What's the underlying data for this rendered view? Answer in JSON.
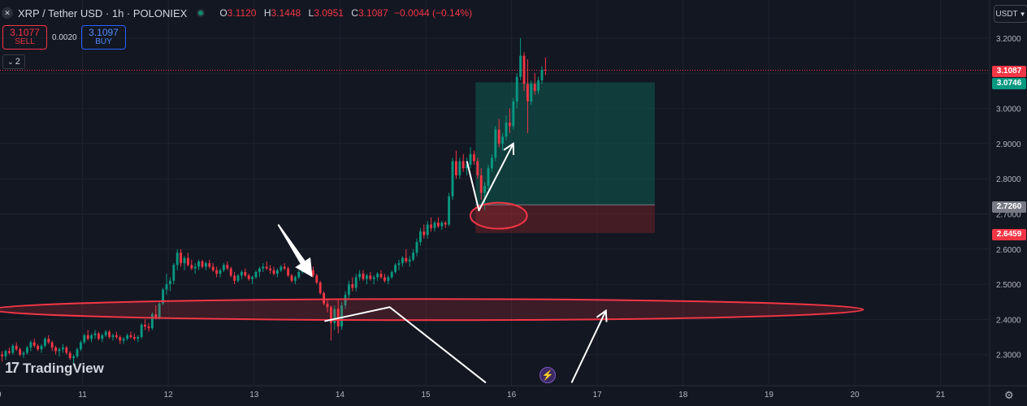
{
  "header": {
    "symbol_title": "XRP / Tether USD · 1h · POLONIEX",
    "open_key": "O",
    "open": "3.1120",
    "high_key": "H",
    "high": "3.1448",
    "low_key": "L",
    "low": "3.0951",
    "close_key": "C",
    "close": "3.1087",
    "change": "−0.0044 (−0.14%)"
  },
  "trade_panel": {
    "sell_price": "3.1077",
    "sell_label": "SELL",
    "spread": "0.0020",
    "buy_price": "3.1097",
    "buy_label": "BUY"
  },
  "indicators_toggle": {
    "count": "2"
  },
  "currency_selector": {
    "label": "USDT"
  },
  "branding": {
    "name": "TradingView"
  },
  "price_labels": {
    "last": "3.1087",
    "target": "3.0746",
    "entry": "2.7260",
    "stop": "2.6459"
  },
  "colors": {
    "background": "#131722",
    "up": "#089981",
    "down": "#f23645",
    "target_zone": "#0f5b50",
    "stop_zone": "#5a1f25"
  },
  "icons": [
    "xrp-logo-icon",
    "market-status-icon",
    "chevron-down-icon",
    "lightning-icon",
    "gear-icon",
    "tradingview-logo-icon"
  ],
  "chart_data": {
    "type": "candlestick",
    "title": "XRP / Tether USD · 1h · POLONIEX",
    "x_ticks": [
      "10",
      "11",
      "12",
      "13",
      "14",
      "15",
      "16",
      "17",
      "18",
      "19",
      "20",
      "21"
    ],
    "y_ticks": [
      "2.3000",
      "2.4000",
      "2.5000",
      "2.6000",
      "2.7000",
      "2.8000",
      "2.9000",
      "3.0000",
      "3.1000",
      "3.2000"
    ],
    "ylim": [
      2.23,
      3.24
    ],
    "xlim": [
      10.0,
      21.9
    ],
    "grid": true,
    "last_price": 3.1087,
    "position_tool": {
      "x_start": 15.58,
      "x_end": 17.67,
      "entry": 2.726,
      "target": 3.0746,
      "stop": 2.6459
    },
    "key_levels": [
      {
        "kind": "ellipse",
        "x_center": 15.85,
        "y_center": 2.695,
        "x_radius": 0.33,
        "y_radius": 0.037
      },
      {
        "kind": "ellipse",
        "x_center": 15.02,
        "y_center": 2.428,
        "x_radius": 5.08,
        "y_radius": 0.03
      }
    ],
    "annotations": [
      {
        "kind": "arrow",
        "points": [
          [
            13.28,
            2.67
          ],
          [
            13.68,
            2.52
          ]
        ],
        "style": "filled"
      },
      {
        "kind": "path",
        "points": [
          [
            13.82,
            2.395
          ],
          [
            14.58,
            2.435
          ],
          [
            15.7,
            2.22
          ]
        ]
      },
      {
        "kind": "arrow",
        "points": [
          [
            16.7,
            2.22
          ],
          [
            17.1,
            2.425
          ]
        ]
      },
      {
        "kind": "path",
        "points": [
          [
            15.48,
            2.85
          ],
          [
            15.62,
            2.71
          ],
          [
            16.02,
            2.9
          ]
        ]
      }
    ],
    "candles_hourly": [
      [
        2.325,
        2.335,
        2.29,
        2.3
      ],
      [
        2.3,
        2.31,
        2.28,
        2.295
      ],
      [
        2.295,
        2.315,
        2.285,
        2.31
      ],
      [
        2.31,
        2.32,
        2.3,
        2.305
      ],
      [
        2.305,
        2.33,
        2.3,
        2.325
      ],
      [
        2.325,
        2.335,
        2.31,
        2.315
      ],
      [
        2.315,
        2.32,
        2.295,
        2.3
      ],
      [
        2.3,
        2.31,
        2.29,
        2.305
      ],
      [
        2.305,
        2.325,
        2.3,
        2.32
      ],
      [
        2.32,
        2.34,
        2.31,
        2.335
      ],
      [
        2.335,
        2.345,
        2.32,
        2.325
      ],
      [
        2.325,
        2.33,
        2.31,
        2.315
      ],
      [
        2.315,
        2.33,
        2.305,
        2.325
      ],
      [
        2.325,
        2.35,
        2.32,
        2.345
      ],
      [
        2.345,
        2.355,
        2.33,
        2.335
      ],
      [
        2.335,
        2.34,
        2.31,
        2.32
      ],
      [
        2.32,
        2.325,
        2.3,
        2.31
      ],
      [
        2.31,
        2.32,
        2.295,
        2.315
      ],
      [
        2.315,
        2.33,
        2.305,
        2.32
      ],
      [
        2.32,
        2.325,
        2.3,
        2.305
      ],
      [
        2.305,
        2.31,
        2.285,
        2.29
      ],
      [
        2.29,
        2.3,
        2.27,
        2.295
      ],
      [
        2.295,
        2.32,
        2.29,
        2.315
      ],
      [
        2.315,
        2.34,
        2.31,
        2.335
      ],
      [
        2.335,
        2.36,
        2.33,
        2.355
      ],
      [
        2.355,
        2.37,
        2.34,
        2.345
      ],
      [
        2.345,
        2.36,
        2.335,
        2.355
      ],
      [
        2.355,
        2.37,
        2.345,
        2.36
      ],
      [
        2.36,
        2.365,
        2.34,
        2.345
      ],
      [
        2.345,
        2.36,
        2.335,
        2.355
      ],
      [
        2.355,
        2.37,
        2.35,
        2.365
      ],
      [
        2.365,
        2.37,
        2.345,
        2.35
      ],
      [
        2.35,
        2.36,
        2.34,
        2.355
      ],
      [
        2.355,
        2.365,
        2.345,
        2.35
      ],
      [
        2.35,
        2.355,
        2.33,
        2.34
      ],
      [
        2.34,
        2.35,
        2.33,
        2.345
      ],
      [
        2.345,
        2.36,
        2.34,
        2.355
      ],
      [
        2.355,
        2.365,
        2.345,
        2.35
      ],
      [
        2.35,
        2.36,
        2.34,
        2.345
      ],
      [
        2.345,
        2.355,
        2.335,
        2.35
      ],
      [
        2.35,
        2.39,
        2.345,
        2.385
      ],
      [
        2.385,
        2.4,
        2.37,
        2.38
      ],
      [
        2.38,
        2.39,
        2.365,
        2.375
      ],
      [
        2.375,
        2.42,
        2.37,
        2.415
      ],
      [
        2.415,
        2.44,
        2.4,
        2.405
      ],
      [
        2.405,
        2.45,
        2.4,
        2.445
      ],
      [
        2.445,
        2.49,
        2.44,
        2.485
      ],
      [
        2.485,
        2.53,
        2.47,
        2.5
      ],
      [
        2.5,
        2.52,
        2.48,
        2.51
      ],
      [
        2.51,
        2.56,
        2.5,
        2.555
      ],
      [
        2.555,
        2.6,
        2.54,
        2.59
      ],
      [
        2.59,
        2.6,
        2.55,
        2.56
      ],
      [
        2.56,
        2.58,
        2.54,
        2.575
      ],
      [
        2.575,
        2.59,
        2.55,
        2.555
      ],
      [
        2.555,
        2.57,
        2.54,
        2.545
      ],
      [
        2.545,
        2.56,
        2.53,
        2.55
      ],
      [
        2.55,
        2.57,
        2.54,
        2.565
      ],
      [
        2.565,
        2.57,
        2.545,
        2.55
      ],
      [
        2.55,
        2.565,
        2.54,
        2.56
      ],
      [
        2.56,
        2.57,
        2.545,
        2.55
      ],
      [
        2.55,
        2.56,
        2.535,
        2.54
      ],
      [
        2.54,
        2.55,
        2.52,
        2.53
      ],
      [
        2.53,
        2.545,
        2.52,
        2.54
      ],
      [
        2.54,
        2.56,
        2.535,
        2.555
      ],
      [
        2.555,
        2.565,
        2.54,
        2.545
      ],
      [
        2.545,
        2.55,
        2.52,
        2.525
      ],
      [
        2.525,
        2.535,
        2.5,
        2.51
      ],
      [
        2.51,
        2.53,
        2.505,
        2.525
      ],
      [
        2.525,
        2.54,
        2.515,
        2.535
      ],
      [
        2.535,
        2.545,
        2.52,
        2.525
      ],
      [
        2.525,
        2.53,
        2.51,
        2.515
      ],
      [
        2.515,
        2.525,
        2.5,
        2.52
      ],
      [
        2.52,
        2.54,
        2.515,
        2.535
      ],
      [
        2.535,
        2.55,
        2.52,
        2.545
      ],
      [
        2.545,
        2.56,
        2.535,
        2.55
      ],
      [
        2.55,
        2.565,
        2.54,
        2.545
      ],
      [
        2.545,
        2.555,
        2.53,
        2.54
      ],
      [
        2.54,
        2.55,
        2.525,
        2.53
      ],
      [
        2.53,
        2.545,
        2.52,
        2.54
      ],
      [
        2.54,
        2.555,
        2.535,
        2.55
      ],
      [
        2.55,
        2.56,
        2.54,
        2.545
      ],
      [
        2.545,
        2.55,
        2.52,
        2.525
      ],
      [
        2.525,
        2.53,
        2.505,
        2.51
      ],
      [
        2.51,
        2.525,
        2.5,
        2.52
      ],
      [
        2.52,
        2.54,
        2.515,
        2.535
      ],
      [
        2.535,
        2.555,
        2.53,
        2.55
      ],
      [
        2.55,
        2.565,
        2.54,
        2.555
      ],
      [
        2.555,
        2.56,
        2.535,
        2.54
      ],
      [
        2.54,
        2.55,
        2.52,
        2.525
      ],
      [
        2.525,
        2.53,
        2.5,
        2.505
      ],
      [
        2.505,
        2.51,
        2.47,
        2.475
      ],
      [
        2.475,
        2.48,
        2.44,
        2.445
      ],
      [
        2.445,
        2.46,
        2.42,
        2.435
      ],
      [
        2.435,
        2.44,
        2.34,
        2.39
      ],
      [
        2.39,
        2.44,
        2.37,
        2.43
      ],
      [
        2.43,
        2.46,
        2.36,
        2.38
      ],
      [
        2.38,
        2.45,
        2.37,
        2.44
      ],
      [
        2.44,
        2.48,
        2.43,
        2.47
      ],
      [
        2.47,
        2.51,
        2.46,
        2.5
      ],
      [
        2.5,
        2.52,
        2.48,
        2.49
      ],
      [
        2.49,
        2.53,
        2.48,
        2.52
      ],
      [
        2.52,
        2.54,
        2.51,
        2.53
      ],
      [
        2.53,
        2.54,
        2.51,
        2.515
      ],
      [
        2.515,
        2.53,
        2.5,
        2.525
      ],
      [
        2.525,
        2.535,
        2.51,
        2.515
      ],
      [
        2.515,
        2.525,
        2.5,
        2.52
      ],
      [
        2.52,
        2.535,
        2.51,
        2.53
      ],
      [
        2.53,
        2.54,
        2.515,
        2.52
      ],
      [
        2.52,
        2.53,
        2.505,
        2.51
      ],
      [
        2.51,
        2.525,
        2.5,
        2.52
      ],
      [
        2.52,
        2.54,
        2.515,
        2.535
      ],
      [
        2.535,
        2.56,
        2.53,
        2.555
      ],
      [
        2.555,
        2.57,
        2.54,
        2.56
      ],
      [
        2.56,
        2.58,
        2.55,
        2.575
      ],
      [
        2.575,
        2.6,
        2.56,
        2.565
      ],
      [
        2.565,
        2.58,
        2.55,
        2.57
      ],
      [
        2.57,
        2.6,
        2.565,
        2.59
      ],
      [
        2.59,
        2.63,
        2.58,
        2.62
      ],
      [
        2.62,
        2.66,
        2.61,
        2.65
      ],
      [
        2.65,
        2.67,
        2.63,
        2.64
      ],
      [
        2.64,
        2.68,
        2.63,
        2.67
      ],
      [
        2.67,
        2.69,
        2.65,
        2.66
      ],
      [
        2.66,
        2.68,
        2.65,
        2.675
      ],
      [
        2.675,
        2.69,
        2.66,
        2.665
      ],
      [
        2.665,
        2.68,
        2.655,
        2.675
      ],
      [
        2.675,
        2.68,
        2.66,
        2.67
      ],
      [
        2.67,
        2.76,
        2.665,
        2.75
      ],
      [
        2.75,
        2.86,
        2.74,
        2.85
      ],
      [
        2.85,
        2.88,
        2.8,
        2.81
      ],
      [
        2.81,
        2.86,
        2.8,
        2.85
      ],
      [
        2.85,
        2.87,
        2.82,
        2.83
      ],
      [
        2.83,
        2.86,
        2.81,
        2.84
      ],
      [
        2.84,
        2.89,
        2.83,
        2.87
      ],
      [
        2.87,
        2.88,
        2.84,
        2.85
      ],
      [
        2.85,
        2.86,
        2.8,
        2.81
      ],
      [
        2.81,
        2.83,
        2.74,
        2.76
      ],
      [
        2.76,
        2.79,
        2.71,
        2.78
      ],
      [
        2.78,
        2.84,
        2.77,
        2.83
      ],
      [
        2.83,
        2.87,
        2.82,
        2.86
      ],
      [
        2.86,
        2.95,
        2.85,
        2.94
      ],
      [
        2.94,
        2.97,
        2.89,
        2.9
      ],
      [
        2.9,
        2.93,
        2.88,
        2.92
      ],
      [
        2.92,
        2.98,
        2.91,
        2.96
      ],
      [
        2.96,
        3.0,
        2.93,
        2.95
      ],
      [
        2.95,
        3.03,
        2.94,
        3.02
      ],
      [
        3.02,
        3.1,
        3.0,
        3.09
      ],
      [
        3.09,
        3.2,
        3.08,
        3.15
      ],
      [
        3.15,
        3.16,
        3.05,
        3.07
      ],
      [
        3.07,
        3.14,
        2.93,
        3.02
      ],
      [
        3.02,
        3.08,
        3.01,
        3.07
      ],
      [
        3.07,
        3.1,
        3.04,
        3.05
      ],
      [
        3.05,
        3.09,
        3.04,
        3.08
      ],
      [
        3.08,
        3.12,
        3.07,
        3.11
      ],
      [
        3.11,
        3.1448,
        3.0951,
        3.1087
      ]
    ]
  }
}
